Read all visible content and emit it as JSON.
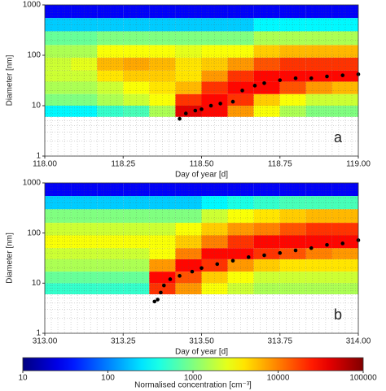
{
  "chart_data": [
    {
      "type": "heatmap",
      "annotation": "a",
      "xlabel": "Day of year [d]",
      "ylabel": "Diameter [nm]",
      "xlim": [
        118,
        119
      ],
      "ylim": [
        1,
        1000
      ],
      "log_y": true,
      "grid": true,
      "xticks": [
        {
          "value": 118,
          "label": "118.00"
        },
        118.25,
        {
          "value": 118.5,
          "label": "118.50"
        },
        118.75,
        {
          "value": 119,
          "label": "119.00"
        }
      ],
      "yticks": [
        1,
        10,
        100,
        1000
      ],
      "x_bins": [
        118,
        118.0833,
        118.1667,
        118.25,
        118.3333,
        118.4167,
        118.5,
        118.5833,
        118.6667,
        118.75,
        118.8333,
        118.9167,
        119
      ],
      "y_bins": [
        6,
        10,
        17,
        30,
        50,
        90,
        160,
        300,
        550,
        1000
      ],
      "values": [
        [
          300,
          300,
          500,
          600,
          1500,
          40000,
          30000,
          8000,
          3000,
          1500,
          1000,
          1000
        ],
        [
          1000,
          1000,
          1500,
          2000,
          3000,
          20000,
          30000,
          20000,
          5000,
          3000,
          2000,
          2000
        ],
        [
          1500,
          1500,
          2000,
          3000,
          4000,
          6000,
          20000,
          30000,
          30000,
          15000,
          8000,
          6000
        ],
        [
          2000,
          2000,
          4000,
          5000,
          5000,
          4000,
          8000,
          20000,
          30000,
          30000,
          30000,
          30000
        ],
        [
          2000,
          2500,
          6000,
          7000,
          6000,
          4000,
          5000,
          8000,
          15000,
          20000,
          20000,
          20000
        ],
        [
          1500,
          1500,
          3000,
          3000,
          3000,
          2500,
          3000,
          3000,
          5000,
          6000,
          6000,
          6000
        ],
        [
          800,
          800,
          1000,
          1000,
          1000,
          1000,
          1000,
          1000,
          1500,
          1500,
          1500,
          1500
        ],
        [
          200,
          200,
          200,
          200,
          200,
          200,
          200,
          200,
          300,
          300,
          300,
          300
        ],
        [
          30,
          30,
          30,
          30,
          30,
          30,
          30,
          30,
          30,
          30,
          30,
          30
        ]
      ],
      "points": {
        "color": "#000000",
        "x": [
          118.43,
          118.45,
          118.48,
          118.5,
          118.53,
          118.56,
          118.6,
          118.63,
          118.67,
          118.7,
          118.75,
          118.8,
          118.85,
          118.9,
          118.95,
          119.0
        ],
        "y": [
          5.5,
          7,
          8,
          8.5,
          10,
          11,
          12,
          20,
          25,
          28,
          32,
          35,
          35,
          38,
          40,
          42
        ]
      }
    },
    {
      "type": "heatmap",
      "annotation": "b",
      "xlabel": "Day of year [d]",
      "ylabel": "Diameter [nm]",
      "xlim": [
        313,
        314
      ],
      "ylim": [
        1,
        1000
      ],
      "log_y": true,
      "grid": true,
      "xticks": [
        {
          "value": 313,
          "label": "313.00"
        },
        313.25,
        {
          "value": 313.5,
          "label": "313.50"
        },
        313.75,
        {
          "value": 314,
          "label": "314.00"
        }
      ],
      "yticks": [
        1,
        10,
        100,
        1000
      ],
      "x_bins": [
        313,
        313.0833,
        313.1667,
        313.25,
        313.3333,
        313.4167,
        313.5,
        313.5833,
        313.6667,
        313.75,
        313.8333,
        313.9167,
        314
      ],
      "y_bins": [
        6,
        10,
        17,
        30,
        50,
        90,
        160,
        300,
        550,
        1000
      ],
      "values": [
        [
          500,
          500,
          500,
          500,
          20000,
          8000,
          3000,
          2000,
          1500,
          1500,
          1500,
          1500
        ],
        [
          800,
          800,
          800,
          800,
          30000,
          15000,
          5000,
          3000,
          2000,
          2000,
          2000,
          2000
        ],
        [
          1500,
          1500,
          1500,
          1500,
          8000,
          30000,
          20000,
          8000,
          5000,
          4000,
          4000,
          4000
        ],
        [
          2000,
          2000,
          2000,
          2000,
          3000,
          10000,
          30000,
          30000,
          20000,
          15000,
          10000,
          8000
        ],
        [
          3000,
          3000,
          3000,
          3000,
          3000,
          5000,
          10000,
          20000,
          30000,
          30000,
          30000,
          30000
        ],
        [
          2000,
          2000,
          2000,
          2000,
          2000,
          3000,
          5000,
          8000,
          10000,
          15000,
          20000,
          20000
        ],
        [
          1000,
          1000,
          1000,
          1000,
          1000,
          1000,
          2000,
          3000,
          4000,
          5000,
          6000,
          6000
        ],
        [
          200,
          200,
          200,
          200,
          200,
          200,
          300,
          400,
          500,
          600,
          600,
          600
        ],
        [
          30,
          30,
          30,
          30,
          30,
          30,
          30,
          30,
          30,
          30,
          30,
          30
        ]
      ],
      "points": {
        "color": "#000000",
        "x": [
          313.35,
          313.36,
          313.37,
          313.38,
          313.4,
          313.43,
          313.47,
          313.5,
          313.55,
          313.6,
          313.65,
          313.7,
          313.75,
          313.8,
          313.85,
          313.9,
          313.95,
          314.0
        ],
        "y": [
          4.3,
          4.7,
          6.5,
          9,
          12,
          14,
          17,
          20,
          24,
          28,
          33,
          36,
          40,
          45,
          50,
          58,
          62,
          72
        ]
      }
    }
  ],
  "colorbar": {
    "label": "Normalised concentration [cm⁻³]",
    "lim": [
      10,
      100000
    ],
    "log": true,
    "ticks": [
      10,
      100,
      1000,
      10000,
      100000
    ],
    "colormap": "jet"
  }
}
